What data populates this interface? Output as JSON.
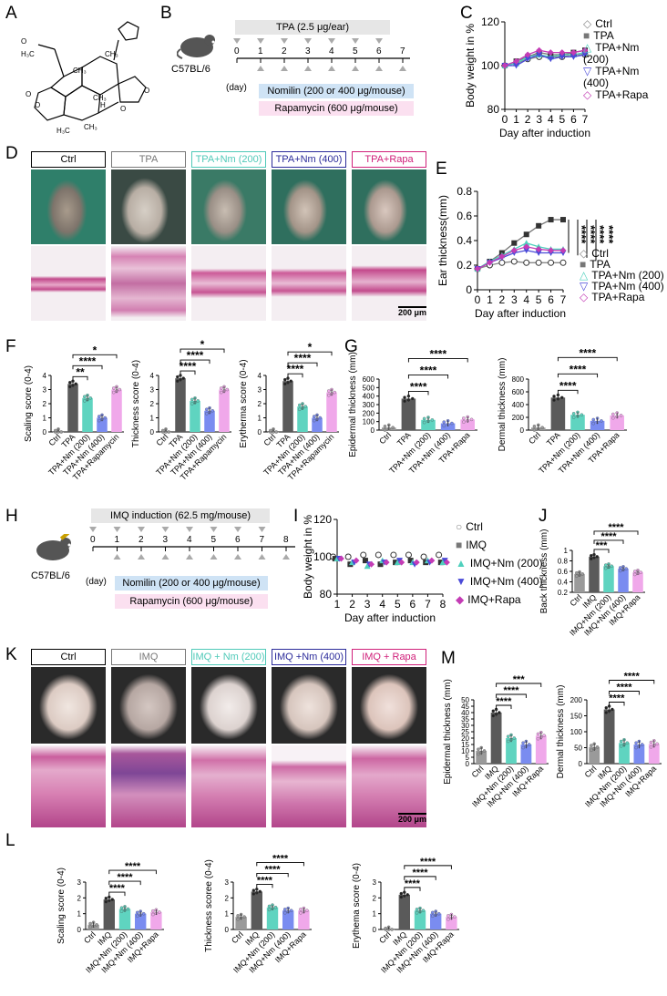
{
  "panels": {
    "A": {
      "label": "A"
    },
    "B": {
      "label": "B",
      "mouse": "C57BL/6",
      "day_unit": "(day)",
      "top_bar": "TPA (2.5 μg/ear)",
      "days": [
        "0",
        "1",
        "2",
        "3",
        "4",
        "5",
        "6",
        "7"
      ],
      "bar1": "Nomilin (200 or 400 μg/mouse)",
      "bar2": "Rapamycin (600 μg/mouse)"
    },
    "D": {
      "label": "D",
      "groups": [
        "Ctrl",
        "TPA",
        "TPA+Nm (200)",
        "TPA+Nm (400)",
        "TPA+Rapa"
      ],
      "colors": [
        "#000000",
        "#777777",
        "#4fc9b8",
        "#2b2b9a",
        "#d0207a"
      ],
      "scale": "200 μm"
    },
    "H": {
      "label": "H",
      "mouse": "C57BL/6",
      "day_unit": "(day)",
      "top_bar": "IMQ induction (62.5 mg/mouse)",
      "days": [
        "0",
        "1",
        "2",
        "3",
        "4",
        "5",
        "6",
        "7",
        "8"
      ],
      "bar1": "Nomilin (200 or 400 μg/mouse)",
      "bar2": "Rapamycin (600 μg/mouse)"
    },
    "K": {
      "label": "K",
      "groups": [
        "Ctrl",
        "IMQ",
        "IMQ + Nm (200)",
        "IMQ +Nm (400)",
        "IMQ + Rapa"
      ],
      "colors": [
        "#000000",
        "#777777",
        "#4fc9b8",
        "#2b2b9a",
        "#d0207a"
      ],
      "scale": "200 μm"
    }
  },
  "colors": {
    "ctrl": "#9a9a9a",
    "tpa": "#5a5a5a",
    "nm200": "#5fd4c0",
    "nm400": "#7a8cf0",
    "rapa": "#f0a8ea"
  },
  "chart_data": [
    {
      "panel": "C",
      "type": "line",
      "ylabel": "Body weight in %",
      "xlabel": "Day after induction",
      "x": [
        0,
        1,
        2,
        3,
        4,
        5,
        6,
        7
      ],
      "ylim": [
        80,
        120
      ],
      "yticks": [
        80,
        100,
        120
      ],
      "series": [
        {
          "name": "Ctrl",
          "values": [
            100,
            101,
            103,
            104,
            104,
            104,
            105,
            105
          ]
        },
        {
          "name": "TPA",
          "values": [
            100,
            102,
            104,
            106,
            105,
            105,
            106,
            107
          ]
        },
        {
          "name": "TPA+Nm (200)",
          "values": [
            100,
            101,
            104,
            105,
            104,
            105,
            105,
            106
          ]
        },
        {
          "name": "TPA+Nm (400)",
          "values": [
            100,
            100,
            103,
            105,
            103,
            104,
            104,
            105
          ]
        },
        {
          "name": "TPA+Rapa",
          "values": [
            100,
            102,
            105,
            107,
            106,
            106,
            106,
            107
          ]
        }
      ]
    },
    {
      "panel": "E",
      "type": "line",
      "ylabel": "Ear thickness(mm)",
      "xlabel": "Day after induction",
      "x": [
        0,
        1,
        2,
        3,
        4,
        5,
        6,
        7
      ],
      "ylim": [
        0.0,
        0.8
      ],
      "yticks": [
        0.0,
        0.2,
        0.4,
        0.6,
        0.8
      ],
      "sig": [
        "****",
        "****",
        "****",
        "****"
      ],
      "series": [
        {
          "name": "Ctrl",
          "values": [
            0.17,
            0.2,
            0.22,
            0.23,
            0.22,
            0.22,
            0.22,
            0.22
          ]
        },
        {
          "name": "TPA",
          "values": [
            0.17,
            0.23,
            0.3,
            0.38,
            0.45,
            0.52,
            0.57,
            0.57
          ]
        },
        {
          "name": "TPA+Nm (200)",
          "values": [
            0.17,
            0.23,
            0.28,
            0.33,
            0.38,
            0.35,
            0.33,
            0.33
          ]
        },
        {
          "name": "TPA+Nm (400)",
          "values": [
            0.17,
            0.22,
            0.26,
            0.3,
            0.32,
            0.3,
            0.3,
            0.3
          ]
        },
        {
          "name": "TPA+Rapa",
          "values": [
            0.17,
            0.22,
            0.27,
            0.32,
            0.35,
            0.33,
            0.32,
            0.32
          ]
        }
      ]
    },
    {
      "panel": "F1",
      "type": "bar",
      "ylabel": "Scaling score (0-4)",
      "categories": [
        "Ctrl",
        "TPA",
        "TPA+Nm (200)",
        "TPA+Nm (400)",
        "TPA+Rapamycin"
      ],
      "values": [
        0,
        3.4,
        2.4,
        1.0,
        3.0
      ],
      "ylim": [
        0,
        4
      ],
      "yticks": [
        0,
        1,
        2,
        3,
        4
      ],
      "brackets": [
        {
          "from": 1,
          "to": 2,
          "label": "**"
        },
        {
          "from": 1,
          "to": 3,
          "label": "****"
        },
        {
          "from": 1,
          "to": 4,
          "label": "*"
        }
      ]
    },
    {
      "panel": "F2",
      "type": "bar",
      "ylabel": "Thickness score (0-4)",
      "categories": [
        "Ctrl",
        "TPA",
        "TPA+Nm (200)",
        "TPA+Nm (400)",
        "TPA+Rapamycin"
      ],
      "values": [
        0,
        3.8,
        2.2,
        1.5,
        3.0
      ],
      "ylim": [
        0,
        4
      ],
      "yticks": [
        0,
        1,
        2,
        3,
        4
      ],
      "brackets": [
        {
          "from": 1,
          "to": 2,
          "label": "****"
        },
        {
          "from": 1,
          "to": 3,
          "label": "****"
        },
        {
          "from": 1,
          "to": 4,
          "label": "*"
        }
      ]
    },
    {
      "panel": "F3",
      "type": "bar",
      "ylabel": "Erytherma score (0-4)",
      "categories": [
        "Ctrl",
        "TPA",
        "TPA+Nm (200)",
        "TPA+Nm (400)",
        "TPA+Rapamycin"
      ],
      "values": [
        0,
        3.6,
        1.8,
        1.0,
        2.8
      ],
      "ylim": [
        0,
        4
      ],
      "yticks": [
        0,
        1,
        2,
        3,
        4
      ],
      "brackets": [
        {
          "from": 1,
          "to": 2,
          "label": "****"
        },
        {
          "from": 1,
          "to": 3,
          "label": "****"
        },
        {
          "from": 1,
          "to": 4,
          "label": "*"
        }
      ]
    },
    {
      "panel": "G1",
      "type": "bar",
      "ylabel": "Epidermal thickness (mm)",
      "categories": [
        "Ctrl",
        "TPA",
        "TPA+Nm (200)",
        "TPA+Nm (400)",
        "TPA+Rapa"
      ],
      "values": [
        30,
        370,
        120,
        80,
        125
      ],
      "ylim": [
        0,
        600
      ],
      "yticks": [
        0,
        100,
        200,
        300,
        400,
        500,
        600
      ],
      "brackets": [
        {
          "from": 1,
          "to": 2,
          "label": "****"
        },
        {
          "from": 1,
          "to": 3,
          "label": "****"
        },
        {
          "from": 1,
          "to": 4,
          "label": "****"
        }
      ]
    },
    {
      "panel": "G2",
      "type": "bar",
      "ylabel": "Dermal thickness (mm)",
      "categories": [
        "Ctrl",
        "TPA",
        "TPA+Nm (200)",
        "TPA+Nm (400)",
        "TPA+Rapa"
      ],
      "values": [
        40,
        510,
        240,
        145,
        230
      ],
      "ylim": [
        0,
        800
      ],
      "yticks": [
        0,
        200,
        400,
        600,
        800
      ],
      "brackets": [
        {
          "from": 1,
          "to": 2,
          "label": "****"
        },
        {
          "from": 1,
          "to": 3,
          "label": "****"
        },
        {
          "from": 1,
          "to": 4,
          "label": "****"
        }
      ]
    },
    {
      "panel": "I",
      "type": "scatter",
      "ylabel": "Body weight in %",
      "xlabel": "Day after induction",
      "x": [
        1,
        2,
        3,
        4,
        5,
        6,
        7,
        8
      ],
      "ylim": [
        80,
        120
      ],
      "yticks": [
        80,
        100,
        120
      ],
      "series": [
        {
          "name": "Ctrl",
          "values": [
            100,
            100,
            101,
            101,
            101,
            101,
            100,
            101
          ]
        },
        {
          "name": "IMQ",
          "values": [
            99,
            96,
            98,
            96,
            97,
            98,
            97,
            97
          ]
        },
        {
          "name": "IMQ+Nm (200)",
          "values": [
            99,
            97,
            95,
            98,
            97,
            97,
            98,
            97
          ]
        },
        {
          "name": "IMQ+Nm (400)",
          "values": [
            99,
            97,
            96,
            97,
            98,
            96,
            97,
            98
          ]
        },
        {
          "name": "IMQ+Rapa",
          "values": [
            99,
            98,
            96,
            97,
            97,
            97,
            98,
            97
          ]
        }
      ]
    },
    {
      "panel": "J",
      "type": "bar",
      "ylabel": "Back thickness (mm)",
      "categories": [
        "Ctrl",
        "IMQ",
        "IMQ+Nm (200)",
        "IMQ+Nm (400)",
        "IMQ+Rapa"
      ],
      "values": [
        0.55,
        0.88,
        0.7,
        0.65,
        0.58
      ],
      "ylim": [
        0.2,
        1.0
      ],
      "yticks": [
        0.2,
        0.4,
        0.6,
        0.8,
        1.0
      ],
      "brackets": [
        {
          "from": 1,
          "to": 2,
          "label": "***"
        },
        {
          "from": 1,
          "to": 3,
          "label": "****"
        },
        {
          "from": 1,
          "to": 4,
          "label": "****"
        }
      ]
    },
    {
      "panel": "M1",
      "type": "bar",
      "ylabel": "Epidermal thickness (mm)",
      "categories": [
        "Ctrl",
        "IMQ",
        "IMQ+Nm (200)",
        "IMQ+Nm (400)",
        "IMQ+Rapa"
      ],
      "values": [
        10,
        40,
        20,
        15,
        22
      ],
      "ylim": [
        0,
        50
      ],
      "yticks": [
        0,
        5,
        10,
        15,
        20,
        25,
        30,
        35,
        40,
        45,
        50
      ],
      "brackets": [
        {
          "from": 1,
          "to": 2,
          "label": "****"
        },
        {
          "from": 1,
          "to": 3,
          "label": "****"
        },
        {
          "from": 1,
          "to": 4,
          "label": "***"
        }
      ]
    },
    {
      "panel": "M2",
      "type": "bar",
      "ylabel": "Dermal thickness (mm)",
      "categories": [
        "Ctrl",
        "IMQ",
        "IMQ+Nm (200)",
        "IMQ+Nm (400)",
        "IMQ+Rapa"
      ],
      "values": [
        52,
        170,
        65,
        60,
        62
      ],
      "ylim": [
        0,
        200
      ],
      "yticks": [
        0,
        50,
        100,
        150,
        200
      ],
      "brackets": [
        {
          "from": 1,
          "to": 2,
          "label": "****"
        },
        {
          "from": 1,
          "to": 3,
          "label": "****"
        },
        {
          "from": 1,
          "to": 4,
          "label": "****"
        }
      ]
    },
    {
      "panel": "L1",
      "type": "bar",
      "ylabel": "Scaling score (0-4)",
      "categories": [
        "Ctrl",
        "IMQ",
        "IMQ+Nm (200)",
        "IMQ+Nm (400)",
        "IMQ+Rapa"
      ],
      "values": [
        0.3,
        1.9,
        1.3,
        1.0,
        1.1
      ],
      "ylim": [
        0,
        3
      ],
      "yticks": [
        0,
        1,
        2,
        3
      ],
      "brackets": [
        {
          "from": 1,
          "to": 2,
          "label": "****"
        },
        {
          "from": 1,
          "to": 3,
          "label": "****"
        },
        {
          "from": 1,
          "to": 4,
          "label": "****"
        }
      ]
    },
    {
      "panel": "L2",
      "type": "bar",
      "ylabel": "Thickness scoree (0-4)",
      "categories": [
        "Ctrl",
        "IMQ",
        "IMQ+Nm (200)",
        "IMQ+Nm (400)",
        "IMQ+Rapa"
      ],
      "values": [
        0.8,
        2.4,
        1.4,
        1.2,
        1.2
      ],
      "ylim": [
        0,
        3
      ],
      "yticks": [
        0,
        1,
        2,
        3
      ],
      "brackets": [
        {
          "from": 1,
          "to": 2,
          "label": "****"
        },
        {
          "from": 1,
          "to": 3,
          "label": "****"
        },
        {
          "from": 1,
          "to": 4,
          "label": "****"
        }
      ]
    },
    {
      "panel": "L3",
      "type": "bar",
      "ylabel": "Erythema score (0-4)",
      "categories": [
        "Ctrl",
        "IMQ",
        "IMQ+Nm (200)",
        "IMQ+Nm (400)",
        "IMQ+Rapa"
      ],
      "values": [
        0,
        2.2,
        1.2,
        1.0,
        0.8
      ],
      "ylim": [
        0,
        3
      ],
      "yticks": [
        0,
        1,
        2,
        3
      ],
      "brackets": [
        {
          "from": 1,
          "to": 2,
          "label": "****"
        },
        {
          "from": 1,
          "to": 3,
          "label": "****"
        },
        {
          "from": 1,
          "to": 4,
          "label": "****"
        }
      ]
    }
  ]
}
